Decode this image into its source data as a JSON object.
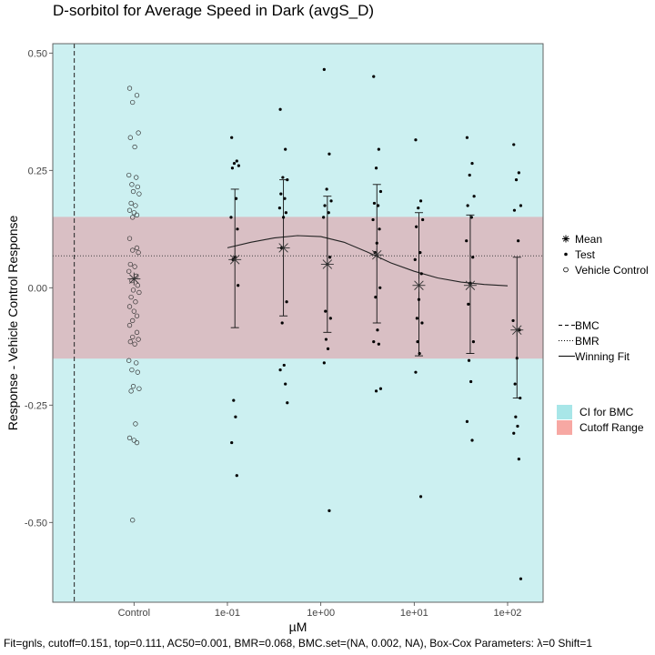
{
  "title": "D-sorbitol for Average Speed in Dark (avgS_D)",
  "footer": "Fit=gnls, cutoff=0.151, top=0.111, AC50=0.001, BMR=0.068, BMC.set=(NA, 0.002, NA), Box-Cox Parameters: λ=0 Shift=1",
  "colors": {
    "ci_band": "#CCF0F1",
    "cutoff_band": "#D9BFC4",
    "ci_legend": "#A8E6E8",
    "cutoff_legend": "#F7A8A3",
    "gridline": "#DCEAEA"
  },
  "legend_points": {
    "mean": "Mean",
    "test": "Test",
    "vehicle": "Vehicle Control"
  },
  "legend_lines": {
    "bmc": "BMC",
    "bmr": "BMR",
    "fit": "Winning Fit"
  },
  "legend_fills": {
    "ci": "CI for BMC",
    "cutoff": "Cutoff Range"
  },
  "chart_data": {
    "type": "scatter",
    "title": "D-sorbitol for Average Speed in Dark (avgS_D)",
    "xlabel": "µM",
    "ylabel": "Response - Vehicle Control Response",
    "x_scale": "log10 (with Control position)",
    "x_ticks": [
      "Control",
      "1e-01",
      "1e+00",
      "1e+01",
      "1e+02"
    ],
    "y_ticks": [
      "0.50",
      "0.25",
      "0.00",
      "-0.25",
      "-0.50"
    ],
    "y_tick_values": [
      0.5,
      0.25,
      0.0,
      -0.25,
      -0.5
    ],
    "ylim": [
      -0.67,
      0.52
    ],
    "xlim_log10": [
      -2.87,
      2.38
    ],
    "control_log10": -2.0,
    "grid": true,
    "bmc_log10": -2.64,
    "bmr": 0.068,
    "cutoff": 0.151,
    "ci_band_log10": [
      -2.87,
      2.38
    ],
    "fit_log10": [
      -1.0,
      -0.75,
      -0.5,
      -0.25,
      0.0,
      0.25,
      0.5,
      0.75,
      1.0,
      1.25,
      1.5,
      1.75,
      2.0
    ],
    "fit_values": [
      0.085,
      0.097,
      0.106,
      0.111,
      0.109,
      0.097,
      0.076,
      0.053,
      0.035,
      0.021,
      0.012,
      0.007,
      0.004
    ],
    "vehicle_control": [
      0.425,
      0.41,
      0.395,
      0.33,
      0.32,
      0.3,
      0.24,
      0.235,
      0.22,
      0.215,
      0.205,
      0.2,
      0.18,
      0.175,
      0.165,
      0.16,
      0.155,
      0.15,
      0.105,
      0.085,
      0.08,
      0.075,
      0.05,
      0.045,
      0.035,
      0.025,
      0.015,
      0.005,
      -0.005,
      -0.01,
      -0.02,
      -0.03,
      -0.04,
      -0.05,
      -0.06,
      -0.07,
      -0.08,
      -0.095,
      -0.105,
      -0.11,
      -0.115,
      -0.12,
      -0.155,
      -0.16,
      -0.175,
      -0.18,
      -0.21,
      -0.215,
      -0.22,
      -0.29,
      -0.32,
      -0.325,
      -0.33,
      -0.495
    ],
    "test_groups": [
      {
        "log10": -0.92,
        "mean": 0.06,
        "err_low": -0.085,
        "err_high": 0.21,
        "points": [
          0.32,
          0.27,
          0.265,
          0.26,
          0.255,
          0.19,
          0.15,
          0.125,
          0.065,
          0.06,
          0.005,
          -0.24,
          -0.275,
          -0.33,
          -0.4
        ]
      },
      {
        "log10": -0.4,
        "mean": 0.085,
        "err_low": -0.06,
        "err_high": 0.23,
        "points": [
          0.38,
          0.295,
          0.235,
          0.23,
          0.2,
          0.19,
          0.17,
          0.16,
          0.15,
          0.085,
          -0.03,
          -0.075,
          -0.165,
          -0.175,
          -0.205,
          -0.245
        ]
      },
      {
        "log10": 0.07,
        "mean": 0.05,
        "err_low": -0.095,
        "err_high": 0.195,
        "points": [
          0.465,
          0.285,
          0.21,
          0.185,
          0.175,
          0.16,
          0.15,
          0.065,
          0.05,
          -0.05,
          -0.065,
          -0.11,
          -0.13,
          -0.16,
          -0.475
        ]
      },
      {
        "log10": 0.6,
        "mean": 0.07,
        "err_low": -0.075,
        "err_high": 0.22,
        "points": [
          0.45,
          0.295,
          0.255,
          0.205,
          0.18,
          0.175,
          0.145,
          0.125,
          0.095,
          0.075,
          0.0,
          -0.02,
          -0.09,
          -0.115,
          -0.12,
          -0.215,
          -0.22
        ]
      },
      {
        "log10": 1.05,
        "mean": 0.005,
        "err_low": -0.145,
        "err_high": 0.16,
        "points": [
          0.315,
          0.185,
          0.17,
          0.145,
          0.13,
          0.075,
          0.06,
          0.03,
          -0.025,
          -0.065,
          -0.075,
          -0.115,
          -0.14,
          -0.18,
          -0.445
        ]
      },
      {
        "log10": 1.6,
        "mean": 0.005,
        "err_low": -0.14,
        "err_high": 0.155,
        "points": [
          0.32,
          0.265,
          0.24,
          0.195,
          0.175,
          0.15,
          0.1,
          0.065,
          0.01,
          -0.035,
          -0.115,
          -0.155,
          -0.2,
          -0.285,
          -0.325
        ]
      },
      {
        "log10": 2.1,
        "mean": -0.09,
        "err_low": -0.235,
        "err_high": 0.065,
        "points": [
          0.305,
          0.245,
          0.23,
          0.175,
          0.165,
          0.1,
          -0.07,
          -0.09,
          -0.15,
          -0.205,
          -0.235,
          -0.275,
          -0.295,
          -0.31,
          -0.365,
          -0.62
        ]
      }
    ]
  }
}
